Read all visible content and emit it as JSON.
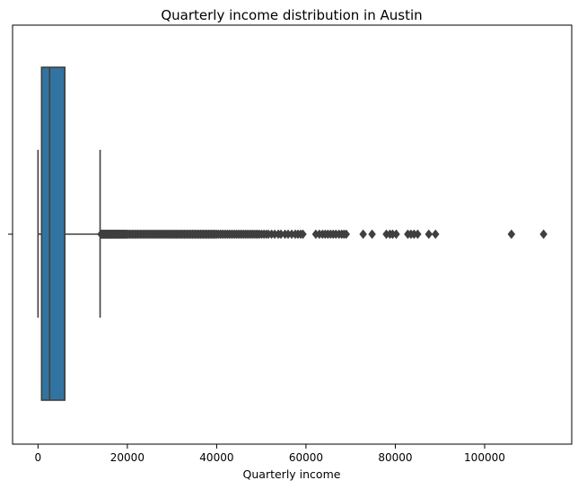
{
  "chart_data": {
    "type": "box",
    "orientation": "horizontal",
    "title": "Quarterly income distribution in Austin",
    "xlabel": "Quarterly income",
    "ylabel": "",
    "xlim": [
      -5700,
      119500
    ],
    "xticks": [
      0,
      20000,
      40000,
      60000,
      80000,
      100000
    ],
    "xtick_labels": [
      "0",
      "20000",
      "40000",
      "60000",
      "80000",
      "100000"
    ],
    "grid": false,
    "box": {
      "whisker_low": 0,
      "q1": 800,
      "median": 2600,
      "q3": 6000,
      "whisker_high": 13900
    },
    "outliers": [
      14100,
      14300,
      14500,
      14700,
      14900,
      15100,
      15300,
      15500,
      15700,
      15900,
      16100,
      16300,
      16500,
      16700,
      16900,
      17100,
      17300,
      17500,
      17700,
      17900,
      18100,
      18300,
      18500,
      18700,
      18900,
      19100,
      19300,
      19500,
      19700,
      19900,
      20200,
      20500,
      20800,
      21100,
      21400,
      21700,
      22000,
      22300,
      22600,
      22900,
      23200,
      23500,
      23800,
      24100,
      24400,
      24700,
      25000,
      25300,
      25600,
      25900,
      26200,
      26500,
      26800,
      27100,
      27400,
      27700,
      28000,
      28300,
      28600,
      28900,
      29200,
      29500,
      29800,
      30100,
      30400,
      30700,
      31000,
      31300,
      31600,
      31900,
      32200,
      32500,
      32800,
      33100,
      33400,
      33700,
      34000,
      34300,
      34600,
      34900,
      35200,
      35500,
      35800,
      36100,
      36400,
      36700,
      37000,
      37300,
      37600,
      37900,
      38200,
      38500,
      38800,
      39100,
      39400,
      39700,
      40000,
      40400,
      40800,
      41200,
      41600,
      42000,
      42400,
      42800,
      43200,
      43600,
      44000,
      44400,
      44800,
      45200,
      45600,
      46000,
      46400,
      46800,
      47200,
      47600,
      48000,
      48400,
      48800,
      49200,
      49600,
      50100,
      50600,
      51100,
      51600,
      52300,
      53000,
      53800,
      54400,
      55300,
      56000,
      56800,
      57600,
      58200,
      58800,
      59300,
      62200,
      63000,
      63700,
      64300,
      64900,
      65500,
      66100,
      66700,
      67400,
      68000,
      68500,
      69000,
      72800,
      74800,
      78000,
      78800,
      79400,
      80200,
      82800,
      83500,
      84200,
      85000,
      87500,
      89000,
      106000,
      113200
    ],
    "box_color": "#3274a1",
    "line_color": "#3f3f3f"
  }
}
